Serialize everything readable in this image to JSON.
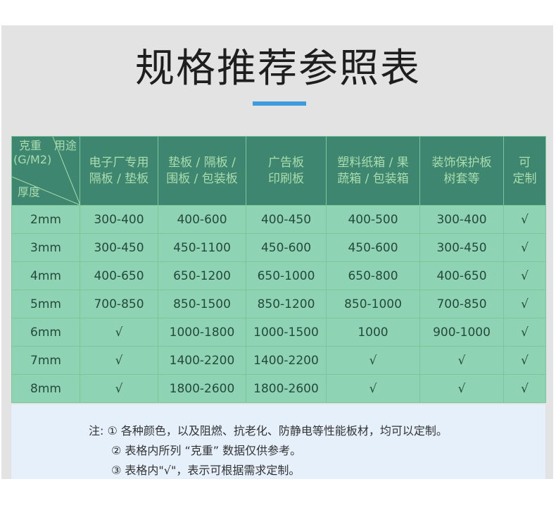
{
  "title": "规格推荐参照表",
  "accent_color": "#3d9be0",
  "table": {
    "corner": {
      "top_left": "克重",
      "unit": "(G/M2)",
      "top_right": "用途",
      "bottom": "厚度"
    },
    "headers": [
      [
        "电子厂专用",
        "隔板 / 垫板"
      ],
      [
        "垫板 / 隔板 /",
        "围板 / 包装板"
      ],
      [
        "广告板",
        "印刷板"
      ],
      [
        "塑料纸箱 / 果",
        "蔬箱 / 包装箱"
      ],
      [
        "装饰保护板",
        "树套等"
      ],
      [
        "可",
        "定制"
      ]
    ],
    "rows": [
      [
        "2mm",
        "300-400",
        "400-600",
        "400-450",
        "400-500",
        "300-400",
        "√"
      ],
      [
        "3mm",
        "300-450",
        "450-1100",
        "450-600",
        "450-600",
        "300-450",
        "√"
      ],
      [
        "4mm",
        "400-650",
        "650-1200",
        "650-1000",
        "650-800",
        "400-650",
        "√"
      ],
      [
        "5mm",
        "700-850",
        "850-1500",
        "850-1200",
        "850-1000",
        "700-850",
        "√"
      ],
      [
        "6mm",
        "√",
        "1000-1800",
        "1000-1500",
        "1000",
        "900-1000",
        "√"
      ],
      [
        "7mm",
        "√",
        "1400-2200",
        "1400-2200",
        "√",
        "√",
        "√"
      ],
      [
        "8mm",
        "√",
        "1800-2600",
        "1800-2600",
        "√",
        "√",
        "√"
      ]
    ]
  },
  "notes": [
    "注: ① 各种颜色，以及阻燃、抗老化、防静电等性能板材，均可以定制。",
    "② 表格内所列 “克重” 数据仅供参考。",
    "③ 表格内\"√\"，表示可根据需求定制。"
  ]
}
